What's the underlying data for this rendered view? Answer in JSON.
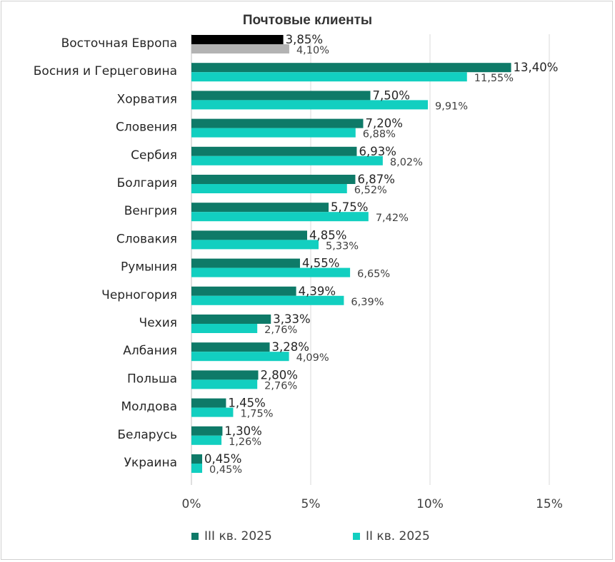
{
  "chart_data": {
    "type": "bar",
    "orientation": "horizontal",
    "title": "Почтовые клиенты",
    "categories": [
      "Восточная Европа",
      "Босния и Герцеговина",
      "Хорватия",
      "Словения",
      "Сербия",
      "Болгария",
      "Венгрия",
      "Словакия",
      "Румыния",
      "Черногория",
      "Чехия",
      "Албания ",
      "Польша",
      "Молдова",
      "Беларусь",
      "Украина"
    ],
    "series": [
      {
        "name": "III кв. 2025",
        "color": "#0e7a68",
        "highlight_color": "#000000",
        "values": [
          3.85,
          13.4,
          7.5,
          7.2,
          6.93,
          6.87,
          5.75,
          4.85,
          4.55,
          4.39,
          3.33,
          3.28,
          2.8,
          1.45,
          1.3,
          0.45
        ],
        "labels": [
          "3,85%",
          "13,40%",
          "7,50%",
          "7,20%",
          "6,93%",
          "6,87%",
          "5,75%",
          "4,85%",
          "4,55%",
          "4,39%",
          "3,33%",
          "3,28%",
          "2,80%",
          "1,45%",
          "1,30%",
          "0,45%"
        ]
      },
      {
        "name": "II кв. 2025",
        "color": "#12cfc0",
        "highlight_color": "#b3b3b3",
        "values": [
          4.1,
          11.55,
          9.91,
          6.88,
          8.02,
          6.52,
          7.42,
          5.33,
          6.65,
          6.39,
          2.76,
          4.09,
          2.76,
          1.75,
          1.26,
          0.45
        ],
        "labels": [
          "4,10%",
          "11,55%",
          "9,91%",
          "6,88%",
          "8,02%",
          "6,52%",
          "7,42%",
          "5,33%",
          "6,65%",
          "6,39%",
          "2,76%",
          "4,09%",
          "2,76%",
          "1,75%",
          "1,26%",
          "0,45%"
        ]
      }
    ],
    "xlim": [
      0,
      15
    ],
    "xticks": [
      0,
      5,
      10,
      15
    ],
    "xtick_labels": [
      "0%",
      "5%",
      "10%",
      "15%"
    ],
    "grid": true,
    "legend_position": "bottom",
    "highlighted_category": "Восточная Европа"
  }
}
